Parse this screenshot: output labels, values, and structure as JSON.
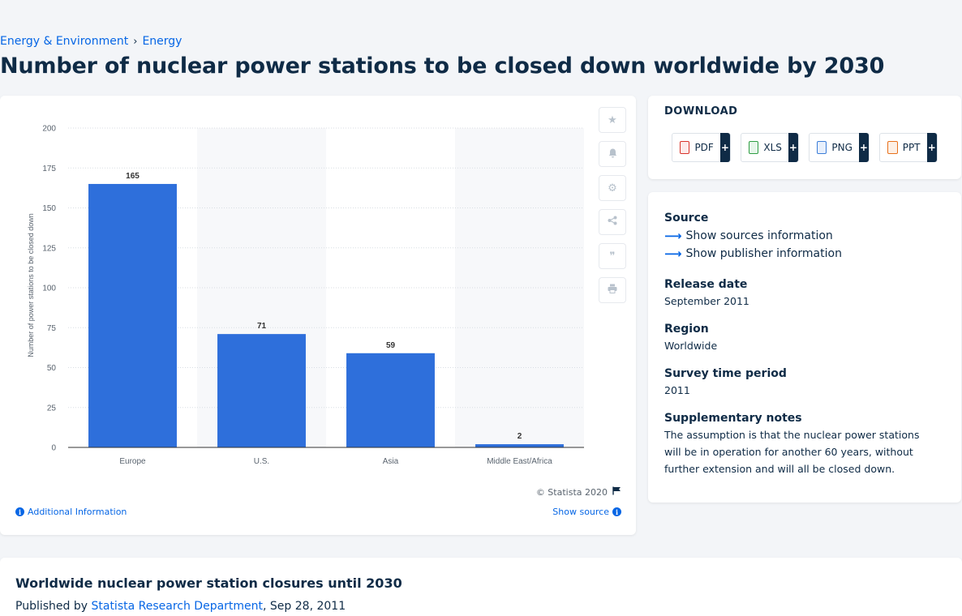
{
  "breadcrumb": {
    "items": [
      "Energy & Environment",
      "Energy"
    ],
    "separator": "›"
  },
  "page_title": "Number of nuclear power stations to be closed down worldwide by 2030",
  "chart_data": {
    "type": "bar",
    "categories": [
      "Europe",
      "U.S.",
      "Asia",
      "Middle East/Africa"
    ],
    "values": [
      165,
      71,
      59,
      2
    ],
    "data_labels": [
      "165",
      "71",
      "59",
      "2"
    ],
    "title": "",
    "xlabel": "",
    "ylabel": "Number of power stations to be closed down",
    "ylim": [
      0,
      200
    ],
    "yticks": [
      "0",
      "25",
      "50",
      "75",
      "100",
      "125",
      "150",
      "175",
      "200"
    ],
    "bar_color": "#2e6fdb",
    "alt_band_color": "#f7f8fa",
    "grid": true
  },
  "chart_tools": [
    {
      "name": "star-icon",
      "glyph": "★"
    },
    {
      "name": "bell-icon",
      "glyph": "🔔"
    },
    {
      "name": "gear-icon",
      "glyph": "⚙"
    },
    {
      "name": "share-icon",
      "glyph": "⋖"
    },
    {
      "name": "quote-icon",
      "glyph": "❞"
    },
    {
      "name": "print-icon",
      "glyph": "⎙"
    }
  ],
  "chart_footer": {
    "credit": "© Statista 2020",
    "additional_info": "Additional Information",
    "show_source": "Show source"
  },
  "download": {
    "title": "DOWNLOAD",
    "buttons": [
      {
        "label": "PDF",
        "icon": "pdf-file-icon",
        "color": "#d9342b"
      },
      {
        "label": "XLS",
        "icon": "xls-file-icon",
        "color": "#2f9e44"
      },
      {
        "label": "PNG",
        "icon": "png-file-icon",
        "color": "#3b7dd8"
      },
      {
        "label": "PPT",
        "icon": "ppt-file-icon",
        "color": "#e8711c"
      }
    ],
    "plus": "+"
  },
  "info": {
    "source_h": "Source",
    "show_sources": "Show sources information",
    "show_publisher": "Show publisher information",
    "release_h": "Release date",
    "release_v": "September 2011",
    "region_h": "Region",
    "region_v": "Worldwide",
    "survey_h": "Survey time period",
    "survey_v": "2011",
    "notes_h": "Supplementary notes",
    "notes_v": "The assumption is that the nuclear power stations will be in operation for another 60 years, without further extension and will all be closed down."
  },
  "publication": {
    "title": "Worldwide nuclear power station closures until 2030",
    "published_by": "Published by",
    "publisher": "Statista Research Department",
    "date": ", Sep 28, 2011"
  }
}
